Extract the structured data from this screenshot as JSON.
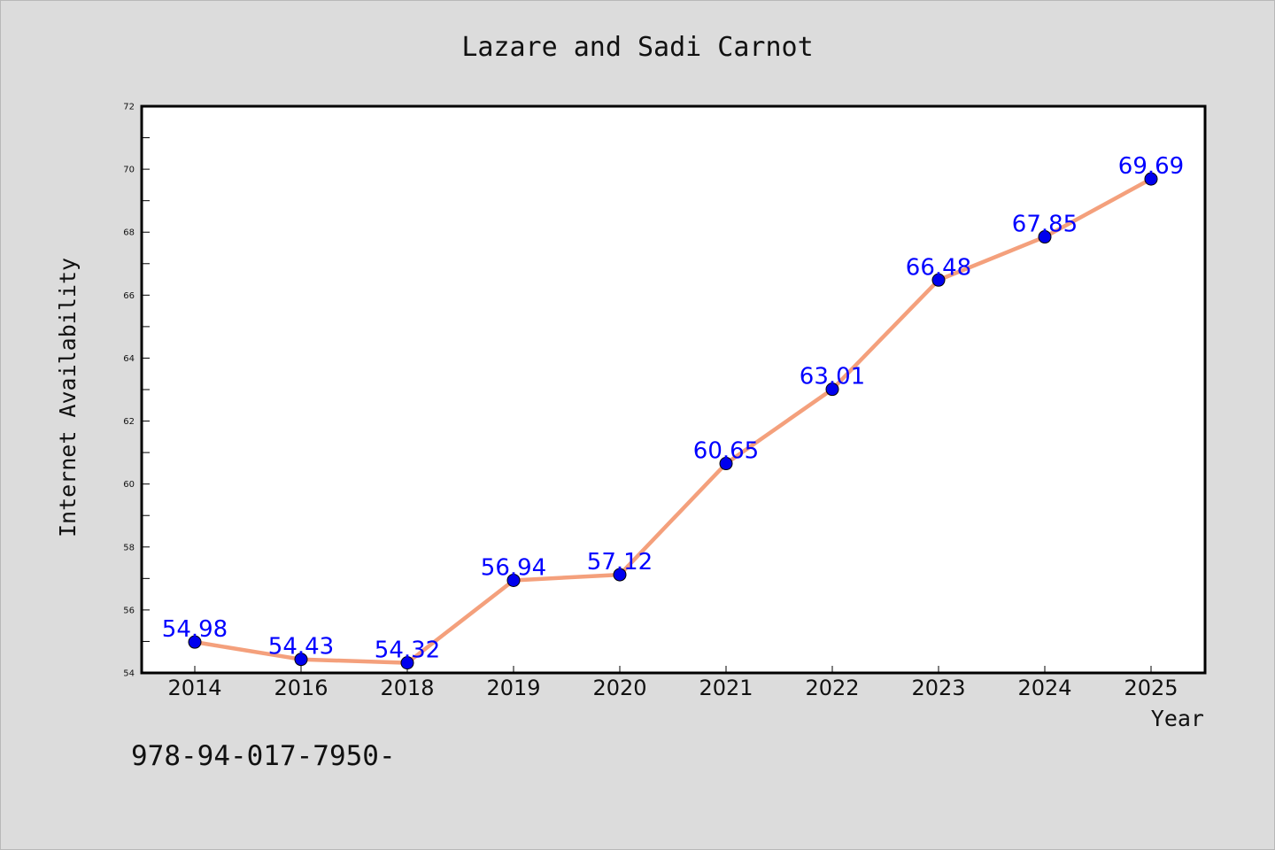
{
  "chart_data": {
    "type": "line",
    "title": "Lazare and Sadi Carnot",
    "xlabel": "Year",
    "ylabel": "Internet Availability",
    "categories": [
      "2014",
      "2016",
      "2018",
      "2019",
      "2020",
      "2021",
      "2022",
      "2023",
      "2024",
      "2025"
    ],
    "series": [
      {
        "values": [
          54.98,
          54.43,
          54.32,
          56.94,
          57.12,
          60.65,
          63.01,
          66.48,
          67.85,
          69.69
        ],
        "data_labels": [
          "54.98",
          "54.43",
          "54.32",
          "56.94",
          "57.12",
          "60.65",
          "63.01",
          "66.48",
          "67.85",
          "69.69"
        ],
        "line_color": "#f4a07c",
        "marker_color": "#0000ee",
        "label_color": "#0000ff"
      }
    ],
    "ylim": [
      54,
      72
    ],
    "yticks": [
      54,
      56,
      58,
      60,
      62,
      64,
      66,
      68,
      70,
      72
    ],
    "ytick_labels": [
      "54",
      "56",
      "58",
      "60",
      "62",
      "64",
      "66",
      "68",
      "70",
      "72"
    ],
    "grid": false,
    "legend": "none"
  },
  "annotation": "978-94-017-7950-",
  "colors": {
    "background": "#dcdcdc",
    "plot_background": "#ffffff",
    "axis": "#000000"
  }
}
